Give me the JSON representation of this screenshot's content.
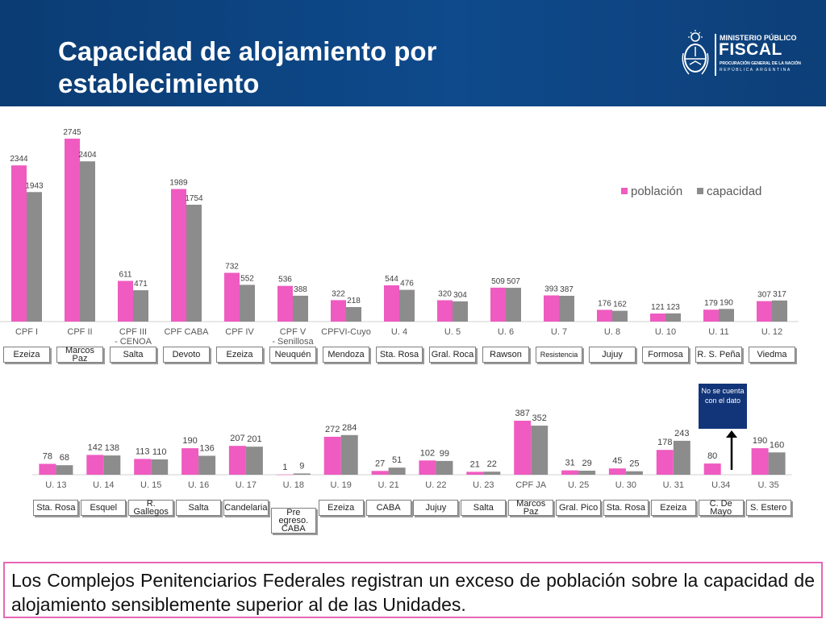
{
  "title": "Capacidad de alojamiento por establecimiento",
  "logo": {
    "line1": "MINISTERIO PÚBLICO",
    "line2": "FISCAL",
    "line3": "PROCURACIÓN GENERAL DE LA NACIÓN",
    "line4": "REPÚBLICA ARGENTINA"
  },
  "colors": {
    "poblacion": "#ef5bc0",
    "capacidad": "#8c8c8c",
    "header": "#0e4a8c",
    "note": "#12357a",
    "summary_border": "#e766b4"
  },
  "chart_data": [
    {
      "type": "bar",
      "categories": [
        "CPF I",
        "CPF II",
        "CPF III - CENOA",
        "CPF CABA",
        "CPF IV",
        "CPF V - Senillosa",
        "CPFVI-Cuyo",
        "U. 4",
        "U. 5",
        "U. 6",
        "U. 7",
        "U. 8",
        "U. 10",
        "U. 11",
        "U. 12"
      ],
      "series": [
        {
          "name": "población",
          "values": [
            2344,
            2745,
            611,
            1989,
            732,
            536,
            322,
            544,
            320,
            509,
            393,
            176,
            121,
            179,
            307
          ]
        },
        {
          "name": "capacidad",
          "values": [
            1943,
            2404,
            471,
            1754,
            552,
            388,
            218,
            476,
            304,
            507,
            387,
            162,
            123,
            190,
            317
          ]
        }
      ],
      "locations": [
        "Ezeiza",
        "Marcos Paz",
        "Salta",
        "Devoto",
        "Ezeiza",
        "Neuquén",
        "Mendoza",
        "Sta. Rosa",
        "Gral. Roca",
        "Rawson",
        "Resistencia",
        "Jujuy",
        "Formosa",
        "R. S. Peña",
        "Viedma"
      ],
      "legend": "top-right",
      "ylim": [
        0,
        2800
      ],
      "grid": false
    },
    {
      "type": "bar",
      "categories": [
        "U. 13",
        "U. 14",
        "U. 15",
        "U. 16",
        "U. 17",
        "U. 18",
        "U. 19",
        "U. 21",
        "U. 22",
        "U. 23",
        "CPF JA",
        "U. 25",
        "U. 30",
        "U. 31",
        "U.34",
        "U. 35"
      ],
      "series": [
        {
          "name": "población",
          "values": [
            78,
            142,
            113,
            190,
            207,
            1,
            272,
            27,
            102,
            21,
            387,
            31,
            45,
            178,
            80,
            190
          ]
        },
        {
          "name": "capacidad",
          "values": [
            68,
            138,
            110,
            136,
            201,
            9,
            284,
            51,
            99,
            22,
            352,
            29,
            25,
            243,
            null,
            160
          ]
        }
      ],
      "locations": [
        "Sta. Rosa",
        "Esquel",
        "R. Gallegos",
        "Salta",
        "Candelaria",
        "Pre egreso. CABA",
        "Ezeiza",
        "CABA",
        "Jujuy",
        "Salta",
        "Marcos Paz",
        "Gral. Pico",
        "Sta. Rosa",
        "Ezeiza",
        "C. De Mayo",
        "S. Estero"
      ],
      "annotation": "No se cuenta con el dato",
      "ylim": [
        0,
        400
      ],
      "grid": false
    }
  ],
  "summary": "Los Complejos Penitenciarios Federales registran un exceso de población sobre la capacidad de alojamiento sensiblemente superior al de las Unidades."
}
